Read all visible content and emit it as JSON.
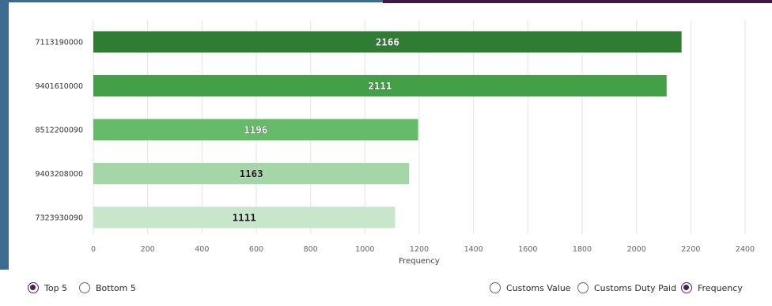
{
  "colors": {
    "accent": "#4b1f57",
    "edge_left": "#3d6b90",
    "edge_top": "#3c1a45"
  },
  "chart_data": {
    "type": "bar",
    "orientation": "horizontal",
    "categories": [
      "7113190000",
      "9401610000",
      "8512200090",
      "9403208000",
      "7323930090"
    ],
    "values": [
      2166,
      2111,
      1196,
      1163,
      1111
    ],
    "data_labels": [
      "2166",
      "2111",
      "1196",
      "1163",
      "1111"
    ],
    "bar_colors": [
      "#2e7d32",
      "#43a047",
      "#66bb6a",
      "#a5d6a7",
      "#c8e6c9"
    ],
    "title": "",
    "xlabel": "Frequency",
    "ylabel": "",
    "xlim": [
      0,
      2400
    ],
    "xticks": [
      0,
      200,
      400,
      600,
      800,
      1000,
      1200,
      1400,
      1600,
      1800,
      2000,
      2200,
      2400
    ],
    "grid": "vertical",
    "legend": "none"
  },
  "controls": {
    "range_options": [
      {
        "label": "Top 5",
        "selected": true
      },
      {
        "label": "Bottom 5",
        "selected": false
      }
    ],
    "metric_options": [
      {
        "label": "Customs Value",
        "selected": false
      },
      {
        "label": "Customs Duty Paid",
        "selected": false
      },
      {
        "label": "Frequency",
        "selected": true
      }
    ]
  }
}
